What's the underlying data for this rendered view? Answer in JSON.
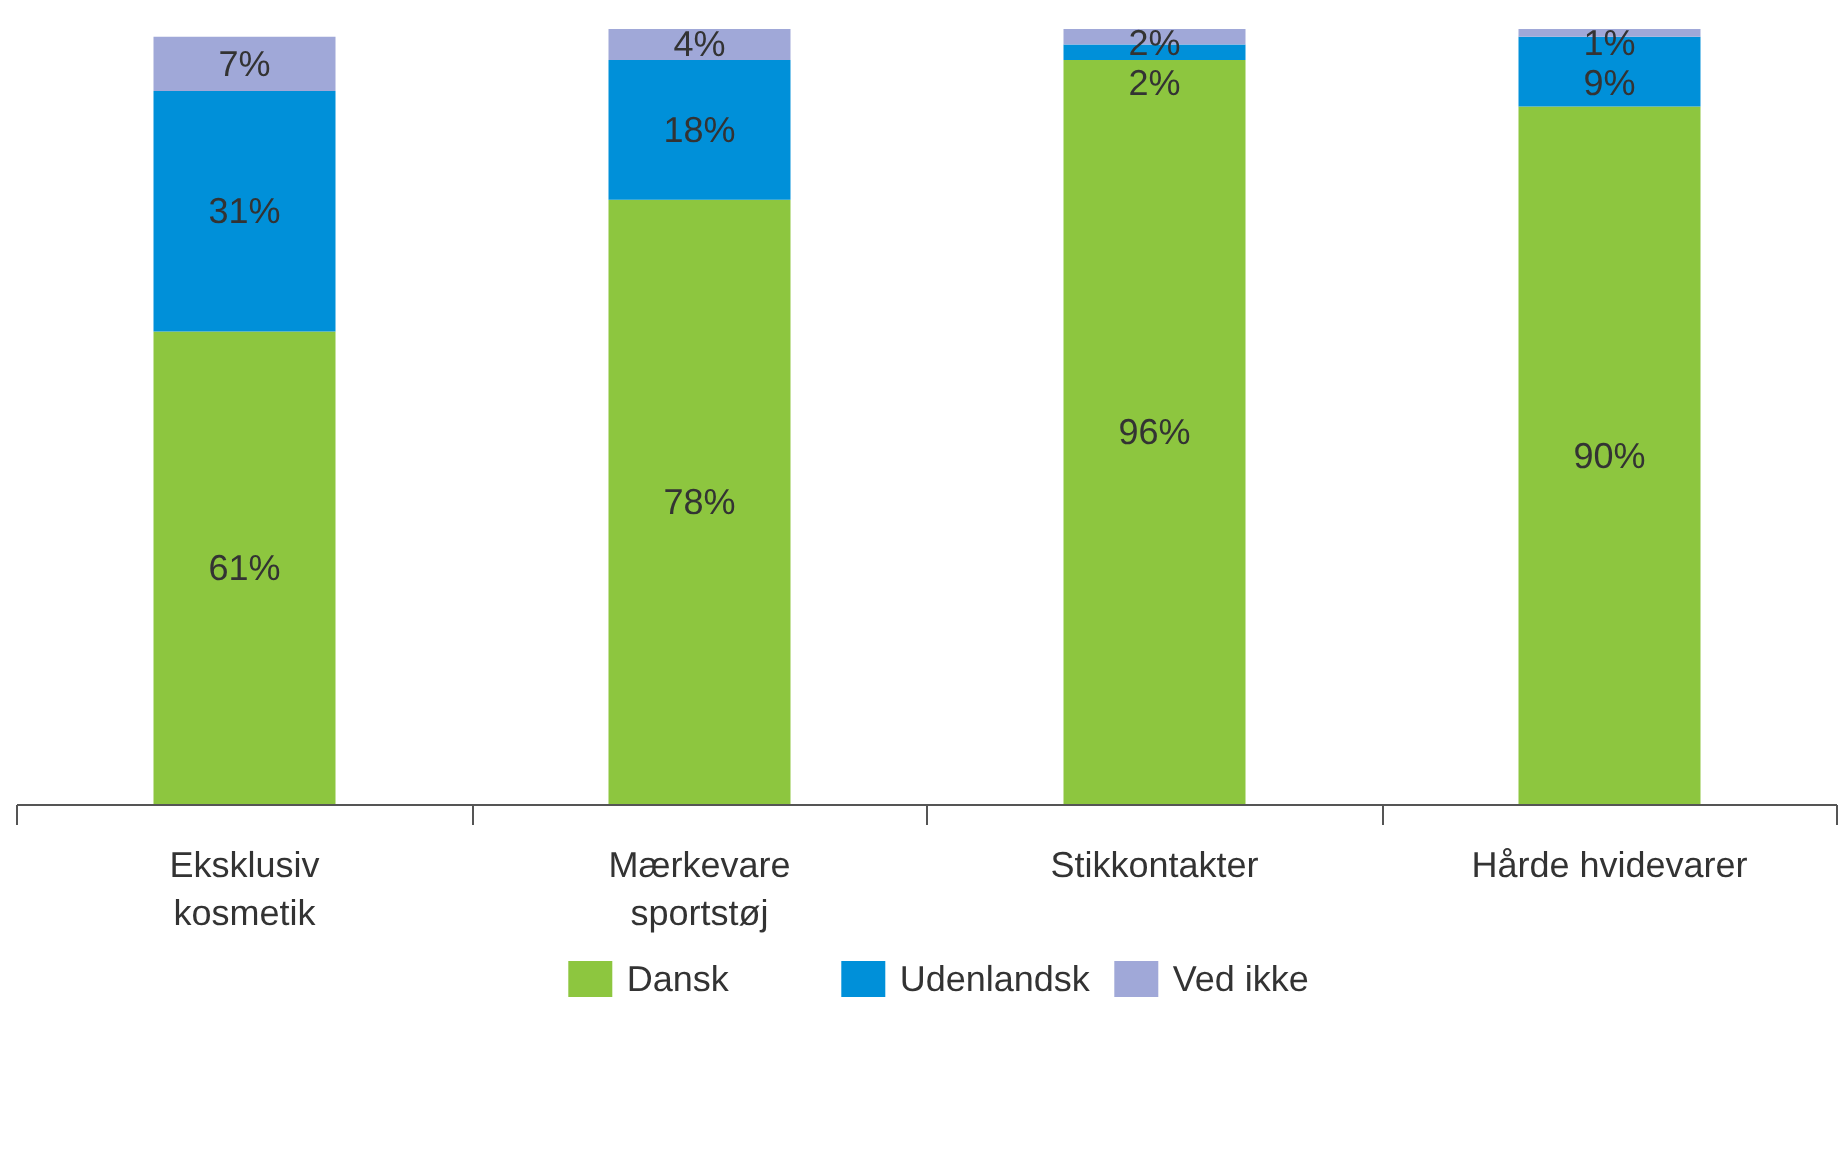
{
  "chart_data": {
    "type": "bar",
    "stacked": true,
    "legend": "bottom",
    "grid": false,
    "categories": [
      "Eksklusiv\nkosmetik",
      "Mærkevare\nsportstøj",
      "Stikkontakter",
      "Hårde hvidevarer"
    ],
    "series": [
      {
        "name": "Dansk",
        "color": "#8dc63f",
        "values": [
          61,
          78,
          96,
          90
        ],
        "value_labels": [
          "61%",
          "78%",
          "96%",
          "90%"
        ]
      },
      {
        "name": "Udenlandsk",
        "color": "#0090d9",
        "values": [
          31,
          18,
          2,
          9
        ],
        "value_labels": [
          "31%",
          "18%",
          "2%",
          "9%"
        ]
      },
      {
        "name": "Ved ikke",
        "color": "#a0a8d8",
        "values": [
          7,
          4,
          2,
          1
        ],
        "value_labels": [
          "7%",
          "4%",
          "2%",
          "1%"
        ]
      }
    ]
  }
}
